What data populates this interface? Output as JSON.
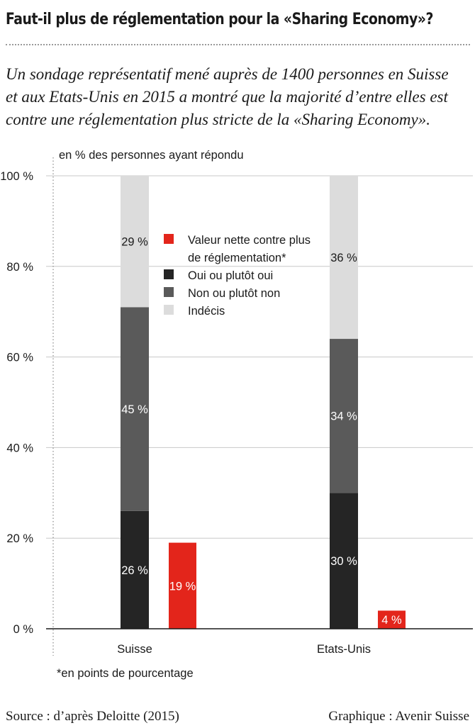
{
  "title": "Faut-il plus de réglementation pour la «Sharing Economy»?",
  "subtitle": [
    "Un sondage représentatif mené auprès de 1400 personnes en Suisse",
    "et aux Etats-Unis en 2015 a montré que la majorité d’entre elles est",
    "contre une réglementation plus stricte de la «Sharing Economy»."
  ],
  "unit_label": "en % des personnes ayant répondu",
  "footnote": "*en points de pourcentage",
  "source": "Source : d’après Deloitte (2015)",
  "credit": "Graphique : Avenir Suisse",
  "colors": {
    "oui": "#252525",
    "non": "#5a5a5a",
    "indecis": "#dcdcdc",
    "nette": "#e3251b"
  },
  "chart_data": {
    "type": "bar",
    "stacked": true,
    "categories": [
      "Suisse",
      "Etats-Unis"
    ],
    "series": [
      {
        "name": "Oui ou plutôt oui",
        "values": [
          26,
          30
        ],
        "labels": [
          "26 %",
          "30 %"
        ],
        "color_key": "oui"
      },
      {
        "name": "Non ou plutôt non",
        "values": [
          45,
          34
        ],
        "labels": [
          "45 %",
          "34 %"
        ],
        "color_key": "non"
      },
      {
        "name": "Indécis",
        "values": [
          29,
          36
        ],
        "labels": [
          "29 %",
          "36 %"
        ],
        "color_key": "indecis"
      }
    ],
    "net_series": {
      "name": "Valeur nette contre plus de réglementation*",
      "name_lines": [
        "Valeur nette contre plus",
        "de réglementation*"
      ],
      "values": [
        19,
        4
      ],
      "labels": [
        "19 %",
        "4 %"
      ],
      "color_key": "nette"
    },
    "legend": [
      {
        "lines": [
          "Valeur nette contre plus",
          "de réglementation*"
        ],
        "color_key": "nette"
      },
      {
        "lines": [
          "Oui ou plutôt oui"
        ],
        "color_key": "oui"
      },
      {
        "lines": [
          "Non ou plutôt non"
        ],
        "color_key": "non"
      },
      {
        "lines": [
          "Indécis"
        ],
        "color_key": "indecis"
      }
    ],
    "legend_position": "center",
    "ylabel": "en % des personnes ayant répondu",
    "ylim": [
      0,
      100
    ],
    "yticks": [
      0,
      20,
      40,
      60,
      80,
      100
    ],
    "ytick_labels": [
      "0 %",
      "20 %",
      "40 %",
      "60 %",
      "80 %",
      "100 %"
    ],
    "grid": true
  }
}
